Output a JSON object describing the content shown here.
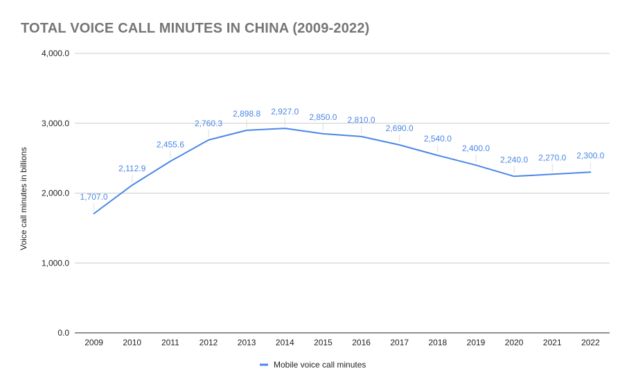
{
  "chart_data": {
    "type": "line",
    "title": "TOTAL VOICE CALL MINUTES IN CHINA (2009-2022)",
    "xlabel": "",
    "ylabel": "Voice call minutes in billions",
    "ylim": [
      0,
      4000
    ],
    "yticks": [
      0,
      1000,
      2000,
      3000,
      4000
    ],
    "ytick_labels": [
      "0.0",
      "1,000.0",
      "2,000.0",
      "3,000.0",
      "4,000.0"
    ],
    "grid": true,
    "legend_position": "bottom",
    "categories": [
      "2009",
      "2010",
      "2011",
      "2012",
      "2013",
      "2014",
      "2015",
      "2016",
      "2017",
      "2018",
      "2019",
      "2020",
      "2021",
      "2022"
    ],
    "series": [
      {
        "name": "Mobile voice call minutes",
        "color": "#4a86e8",
        "values": [
          1707.0,
          2112.9,
          2455.6,
          2760.3,
          2898.8,
          2927.0,
          2850.0,
          2810.0,
          2690.0,
          2540.0,
          2400.0,
          2240.0,
          2270.0,
          2300.0
        ],
        "labels": [
          "1,707.0",
          "2,112.9",
          "2,455.6",
          "2,760.3",
          "2,898.8",
          "2,927.0",
          "2,850.0",
          "2,810.0",
          "2,690.0",
          "2,540.0",
          "2,400.0",
          "2,240.0",
          "2,270.0",
          "2,300.0"
        ]
      }
    ]
  },
  "colors": {
    "title": "#757575",
    "grid": "#cccccc",
    "axis": "#222222",
    "series_line": "#4a86e8"
  }
}
